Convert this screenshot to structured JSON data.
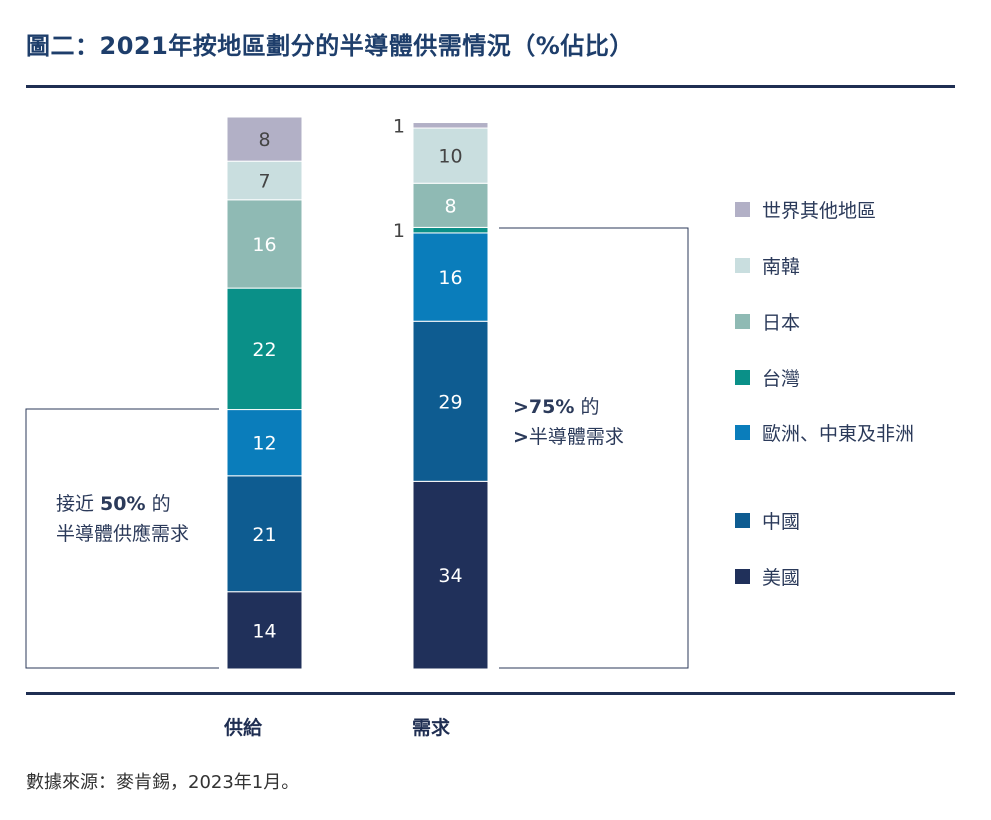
{
  "chart_data": {
    "type": "bar",
    "stacked": true,
    "title": "圖二：2021年按地區劃分的半導體供需情況（%佔比）",
    "categories": [
      "供給",
      "需求"
    ],
    "series": [
      {
        "name": "美國",
        "color": "#20305a",
        "values": [
          14,
          34
        ]
      },
      {
        "name": "中國",
        "color": "#0e5c91",
        "values": [
          21,
          29
        ]
      },
      {
        "name": "歐洲、中東及非洲",
        "color": "#0a7dbb",
        "values": [
          12,
          16
        ]
      },
      {
        "name": "台灣",
        "color": "#0a9088",
        "values": [
          22,
          1
        ]
      },
      {
        "name": "日本",
        "color": "#8fbab4",
        "values": [
          16,
          8
        ]
      },
      {
        "name": "南韓",
        "color": "#c9dedf",
        "values": [
          7,
          10
        ]
      },
      {
        "name": "世界其他地區",
        "color": "#b2b0c6",
        "values": [
          8,
          1
        ]
      }
    ],
    "legend_order": [
      "世界其他地區",
      "南韓",
      "日本",
      "台灣",
      "歐洲、中東及非洲",
      "中國",
      "美國"
    ],
    "legend_position": "right",
    "annotations": [
      {
        "lines": [
          "接近 50% 的",
          "半導體供應需求"
        ],
        "bold": "50%"
      },
      {
        "lines": [
          ">75% 的",
          ">半導體需求"
        ],
        "bold": ">75%"
      }
    ],
    "source": "數據來源：麥肯錫，2023年1月。"
  }
}
